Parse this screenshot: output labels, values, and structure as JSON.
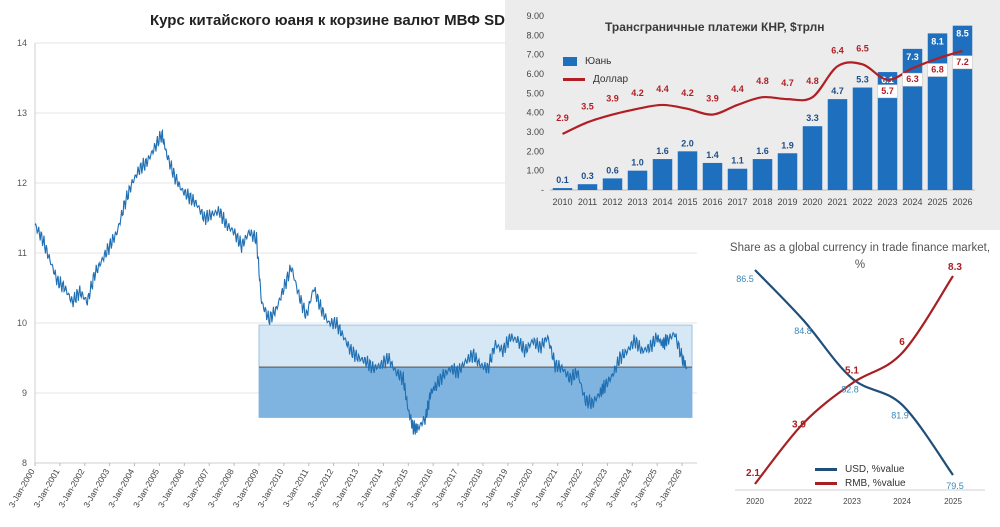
{
  "main": {
    "title": "Курс китайского юаня к корзине валют МВФ SDR"
  },
  "flows": {
    "title": "Трансграничные платежи КНР, $трлн"
  },
  "share": {
    "title": "Share as a global currency in trade finance market, %"
  },
  "colors": {
    "line_blue": "#1f6fb2",
    "band_light": "#d6e8f6",
    "band_dark": "#7fb4e0",
    "bar_blue": "#1f6fbf",
    "dollar_red": "#b11f24",
    "usd_navy": "#1f4e79",
    "rmb_red": "#a81f23",
    "usd_label": "#3a86b8"
  },
  "chart_data": [
    {
      "type": "line",
      "title": "Курс китайского юаня к корзине валют МВФ SDR",
      "ylim": [
        8,
        14
      ],
      "y_ticks": [
        "8",
        "9",
        "10",
        "11",
        "12",
        "13",
        "14"
      ],
      "x_ticks": [
        "3-Jan-2000",
        "3-Jan-2001",
        "3-Jan-2002",
        "3-Jan-2003",
        "3-Jan-2004",
        "3-Jan-2005",
        "3-Jan-2006",
        "3-Jan-2007",
        "3-Jan-2008",
        "3-Jan-2009",
        "3-Jan-2010",
        "3-Jan-2011",
        "3-Jan-2012",
        "3-Jan-2013",
        "3-Jan-2014",
        "3-Jan-2015",
        "3-Jan-2016",
        "3-Jan-2017",
        "3-Jan-2018",
        "3-Jan-2019",
        "3-Jan-2020",
        "3-Jan-2021",
        "3-Jan-2022",
        "3-Jan-2023",
        "3-Jan-2024",
        "3-Jan-2025",
        "3-Jan-2026"
      ],
      "grid": true,
      "bands": [
        {
          "name": "",
          "from": 8.65,
          "to": 9.97,
          "from_year": 2009.0,
          "to_year": 2026.4
        },
        {
          "name": "",
          "from": 8.65,
          "to": 9.37,
          "from_year": 2009.0,
          "to_year": 2026.4
        }
      ],
      "series": [
        {
          "name": "",
          "x": [
            2000.0,
            2000.3,
            2000.6,
            2000.9,
            2001.2,
            2001.5,
            2001.8,
            2002.1,
            2002.4,
            2002.7,
            2003.0,
            2003.3,
            2003.6,
            2003.9,
            2004.2,
            2004.5,
            2004.8,
            2005.1,
            2005.3,
            2005.6,
            2005.9,
            2006.2,
            2006.5,
            2006.8,
            2007.1,
            2007.4,
            2007.7,
            2008.0,
            2008.3,
            2008.6,
            2008.9,
            2009.1,
            2009.4,
            2009.7,
            2010.0,
            2010.3,
            2010.6,
            2010.9,
            2011.2,
            2011.5,
            2011.8,
            2012.1,
            2012.4,
            2012.7,
            2013.0,
            2013.3,
            2013.6,
            2013.9,
            2014.2,
            2014.5,
            2014.8,
            2015.0,
            2015.2,
            2015.4,
            2015.7,
            2015.9,
            2016.1,
            2016.4,
            2016.7,
            2017.0,
            2017.3,
            2017.6,
            2017.9,
            2018.2,
            2018.5,
            2018.8,
            2019.1,
            2019.4,
            2019.7,
            2020.0,
            2020.3,
            2020.6,
            2020.9,
            2021.2,
            2021.5,
            2021.8,
            2022.1,
            2022.4,
            2022.7,
            2022.9,
            2023.2,
            2023.5,
            2023.8,
            2024.1,
            2024.4,
            2024.7,
            2025.0,
            2025.2,
            2025.4,
            2025.7,
            2026.0,
            2026.2
          ],
          "y": [
            11.4,
            11.2,
            10.9,
            10.6,
            10.5,
            10.3,
            10.45,
            10.3,
            10.7,
            10.9,
            11.1,
            11.3,
            11.7,
            12.0,
            12.2,
            12.3,
            12.5,
            12.7,
            12.4,
            12.1,
            11.9,
            11.8,
            11.7,
            11.5,
            11.55,
            11.6,
            11.4,
            11.3,
            11.1,
            11.3,
            11.2,
            10.3,
            10.05,
            10.2,
            10.5,
            10.8,
            10.4,
            10.1,
            10.5,
            10.2,
            10.0,
            10.0,
            9.8,
            9.6,
            9.5,
            9.45,
            9.35,
            9.4,
            9.5,
            9.3,
            9.2,
            8.75,
            8.5,
            8.5,
            8.65,
            9.0,
            9.1,
            9.25,
            9.35,
            9.3,
            9.45,
            9.55,
            9.4,
            9.35,
            9.7,
            9.6,
            9.8,
            9.75,
            9.6,
            9.75,
            9.65,
            9.8,
            9.4,
            9.35,
            9.2,
            9.3,
            8.9,
            8.85,
            9.0,
            9.1,
            9.25,
            9.5,
            9.6,
            9.75,
            9.6,
            9.65,
            9.8,
            9.7,
            9.75,
            9.85,
            9.5,
            9.35
          ]
        }
      ]
    },
    {
      "type": "bar",
      "title": "Трансграничные платежи КНР, $трлн",
      "categories": [
        "2010",
        "2011",
        "2012",
        "2013",
        "2014",
        "2015",
        "2016",
        "2017",
        "2018",
        "2019",
        "2020",
        "2021",
        "2022",
        "2023",
        "2024",
        "2025",
        "2026"
      ],
      "ylim": [
        0,
        9
      ],
      "y_ticks": [
        "-",
        "1.00",
        "2.00",
        "3.00",
        "4.00",
        "5.00",
        "6.00",
        "7.00",
        "8.00",
        "9.00"
      ],
      "legend_position": "top-left",
      "series": [
        {
          "name": "Юань",
          "type": "bar",
          "values": [
            0.1,
            0.3,
            0.6,
            1.0,
            1.6,
            2.0,
            1.4,
            1.1,
            1.6,
            1.9,
            3.3,
            4.7,
            5.3,
            6.1,
            7.3,
            8.1,
            8.5
          ]
        },
        {
          "name": "Доллар",
          "type": "line",
          "values": [
            2.9,
            3.5,
            3.9,
            4.2,
            4.4,
            4.2,
            3.9,
            4.4,
            4.8,
            4.7,
            4.8,
            6.4,
            6.5,
            5.7,
            6.3,
            6.8,
            7.2
          ]
        }
      ]
    },
    {
      "type": "line",
      "title": "Share as a global currency in trade finance market, %",
      "categories": [
        "2020",
        "2022",
        "2023",
        "2024",
        "2025"
      ],
      "legend_position": "bottom-center",
      "series": [
        {
          "name": "USD, %value",
          "values": [
            86.5,
            84.8,
            82.8,
            81.9,
            79.5
          ]
        },
        {
          "name": "RMB, %value",
          "values": [
            2.1,
            3.9,
            5.1,
            6.0,
            8.3
          ]
        }
      ]
    }
  ]
}
